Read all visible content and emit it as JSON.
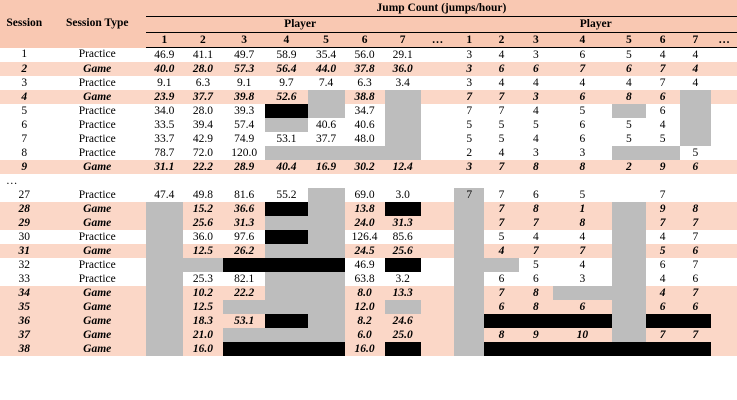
{
  "header": {
    "session": "Session",
    "session_type": "Session Type",
    "group_title": "Jump Count (jumps/hour)",
    "player_left": "Player",
    "player_right": "Player",
    "nums_left": [
      "1",
      "2",
      "3",
      "4",
      "5",
      "6",
      "7",
      "…"
    ],
    "nums_right": [
      "1",
      "2",
      "3",
      "4",
      "5",
      "6",
      "7",
      "…"
    ]
  },
  "colors": {
    "header_bg": "#f9c8b2",
    "game_row_bg": "#fbd7c7",
    "missing_gray": "#bdbdbd",
    "missing_black": "#000000"
  },
  "rows": [
    {
      "s": "1",
      "t": "Practice",
      "type": "practice",
      "cells": [
        "46.9",
        "41.1",
        "49.7",
        "58.9",
        "35.4",
        "56.0",
        "29.1",
        "",
        "3",
        "4",
        "3",
        "6",
        "5",
        "4",
        "4",
        ""
      ]
    },
    {
      "s": "2",
      "t": "Game",
      "type": "game",
      "cells": [
        "40.0",
        "28.0",
        "57.3",
        "56.4",
        "44.0",
        "37.8",
        "36.0",
        "",
        "3",
        "6",
        "6",
        "7",
        "6",
        "7",
        "4",
        ""
      ]
    },
    {
      "s": "3",
      "t": "Practice",
      "type": "practice",
      "cells": [
        "9.1",
        "6.3",
        "9.1",
        "9.7",
        "7.4",
        "6.3",
        "3.4",
        "",
        "3",
        "4",
        "4",
        "4",
        "4",
        "7",
        "4",
        ""
      ]
    },
    {
      "s": "4",
      "t": "Game",
      "type": "game",
      "cells": [
        "23.9",
        "37.7",
        "39.8",
        "52.6",
        "",
        "38.8",
        "",
        "",
        "7",
        "7",
        "3",
        "6",
        "8",
        "6",
        "",
        ""
      ]
    },
    {
      "s": "5",
      "t": "Practice",
      "type": "practice",
      "cells": [
        "34.0",
        "28.0",
        "39.3",
        "",
        "",
        "34.7",
        "",
        "",
        "7",
        "7",
        "4",
        "5",
        "",
        "6",
        "",
        ""
      ]
    },
    {
      "s": "6",
      "t": "Practice",
      "type": "practice",
      "cells": [
        "33.5",
        "39.4",
        "57.4",
        "",
        "40.6",
        "40.6",
        "",
        "",
        "5",
        "5",
        "5",
        "6",
        "5",
        "4",
        "",
        ""
      ]
    },
    {
      "s": "7",
      "t": "Practice",
      "type": "practice",
      "cells": [
        "33.7",
        "42.9",
        "74.9",
        "53.1",
        "37.7",
        "48.0",
        "",
        "",
        "5",
        "5",
        "4",
        "6",
        "5",
        "5",
        "",
        ""
      ]
    },
    {
      "s": "8",
      "t": "Practice",
      "type": "practice",
      "cells": [
        "78.7",
        "72.0",
        "120.0",
        "",
        "",
        "",
        "",
        "",
        "2",
        "4",
        "3",
        "3",
        "",
        "",
        "5",
        ""
      ]
    },
    {
      "s": "9",
      "t": "Game",
      "type": "game",
      "cells": [
        "31.1",
        "22.2",
        "28.9",
        "40.4",
        "16.9",
        "30.2",
        "12.4",
        "",
        "3",
        "7",
        "8",
        "8",
        "2",
        "9",
        "6",
        ""
      ]
    },
    {
      "s": "…",
      "t": "",
      "type": "dots",
      "cells": [
        "",
        "",
        "",
        "",
        "",
        "",
        "",
        "",
        "",
        "",
        "",
        "",
        "",
        "",
        "",
        ""
      ]
    },
    {
      "s": "27",
      "t": "Practice",
      "type": "practice",
      "cells": [
        "47.4",
        "49.8",
        "81.6",
        "55.2",
        "",
        "69.0",
        "3.0",
        "",
        "7",
        "7",
        "6",
        "5",
        "",
        "7",
        "",
        ""
      ]
    },
    {
      "s": "28",
      "t": "Game",
      "type": "game",
      "cells": [
        "",
        "15.2",
        "36.6",
        "",
        "",
        "13.8",
        "",
        "",
        "",
        "7",
        "8",
        "1",
        "",
        "9",
        "8",
        ""
      ]
    },
    {
      "s": "29",
      "t": "Game",
      "type": "game",
      "cells": [
        "",
        "25.6",
        "31.3",
        "",
        "",
        "24.0",
        "31.3",
        "",
        "",
        "7",
        "7",
        "8",
        "",
        "7",
        "7",
        ""
      ]
    },
    {
      "s": "30",
      "t": "Practice",
      "type": "practice",
      "cells": [
        "",
        "36.0",
        "97.6",
        "",
        "",
        "126.4",
        "85.6",
        "",
        "",
        "5",
        "4",
        "4",
        "",
        "4",
        "7",
        ""
      ]
    },
    {
      "s": "31",
      "t": "Game",
      "type": "game",
      "cells": [
        "",
        "12.5",
        "26.2",
        "",
        "",
        "24.5",
        "25.6",
        "",
        "",
        "4",
        "7",
        "7",
        "",
        "5",
        "6",
        ""
      ]
    },
    {
      "s": "32",
      "t": "Practice",
      "type": "practice",
      "cells": [
        "",
        "",
        "",
        "",
        "",
        "46.9",
        "",
        "",
        "",
        "",
        "5",
        "4",
        "",
        "6",
        "7",
        ""
      ]
    },
    {
      "s": "33",
      "t": "Practice",
      "type": "practice",
      "cells": [
        "",
        "25.3",
        "82.1",
        "",
        "",
        "63.8",
        "3.2",
        "",
        "",
        "6",
        "6",
        "3",
        "",
        "4",
        "6",
        ""
      ]
    },
    {
      "s": "34",
      "t": "Game",
      "type": "game",
      "cells": [
        "",
        "10.2",
        "22.2",
        "",
        "",
        "8.0",
        "13.3",
        "",
        "",
        "7",
        "8",
        "",
        "",
        "4",
        "7",
        ""
      ]
    },
    {
      "s": "35",
      "t": "Game",
      "type": "game",
      "cells": [
        "",
        "12.5",
        "",
        "",
        "",
        "12.0",
        "",
        "",
        "",
        "6",
        "8",
        "6",
        "",
        "6",
        "6",
        ""
      ]
    },
    {
      "s": "36",
      "t": "Game",
      "type": "game",
      "cells": [
        "",
        "18.3",
        "53.1",
        "",
        "",
        "8.2",
        "24.6",
        "",
        "",
        "",
        "",
        "",
        "",
        "",
        "",
        ""
      ]
    },
    {
      "s": "37",
      "t": "Game",
      "type": "game",
      "cells": [
        "",
        "21.0",
        "",
        "",
        "",
        "6.0",
        "25.0",
        "",
        "",
        "8",
        "9",
        "10",
        "",
        "7",
        "7",
        ""
      ]
    },
    {
      "s": "38",
      "t": "Game",
      "type": "game",
      "cells": [
        "",
        "16.0",
        "",
        "",
        "",
        "16.0",
        "",
        "",
        "",
        "",
        "",
        "",
        "",
        "",
        "",
        ""
      ]
    }
  ]
}
